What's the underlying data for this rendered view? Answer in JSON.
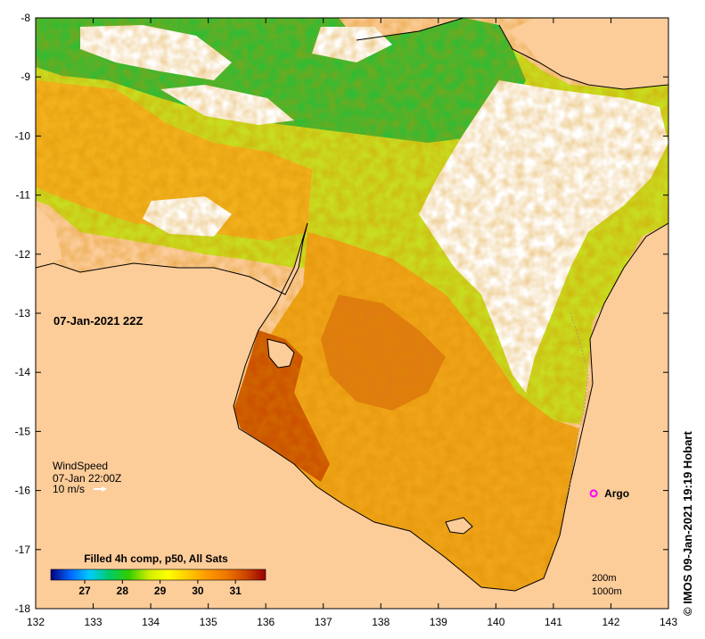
{
  "map": {
    "timestamp": "07-Jan-2021 22Z",
    "credit": "©  IMOS 09-Jan-2021 19:19 Hobart",
    "lon_ticks": [
      "132",
      "133",
      "134",
      "135",
      "136",
      "137",
      "138",
      "139",
      "140",
      "141",
      "142",
      "143"
    ],
    "lat_ticks": [
      "-8",
      "-9",
      "-10",
      "-11",
      "-12",
      "-13",
      "-14",
      "-15",
      "-16",
      "-17",
      "-18"
    ],
    "lon_range": [
      132,
      143
    ],
    "lat_range": [
      -18,
      -8
    ],
    "colors": {
      "land": "#fccc99",
      "cloud": "#ffffff",
      "coast": "#000000"
    }
  },
  "wind": {
    "title": "WindSpeed",
    "time": "07-Jan 22:00Z",
    "scale": "10 m/s"
  },
  "legend": {
    "title": "Filled 4h comp, p50, All Sats",
    "ticks": [
      "27",
      "28",
      "29",
      "30",
      "31"
    ],
    "range": [
      26.1,
      31.8
    ],
    "colors": [
      "#00007f",
      "#0066ff",
      "#00ccff",
      "#00cc66",
      "#33cc00",
      "#ccee00",
      "#ffff00",
      "#ffcc00",
      "#ff9900",
      "#ee7700",
      "#cc4400",
      "#990000"
    ]
  },
  "argo": {
    "label": "Argo",
    "lon": 141.7,
    "lat": -16.05,
    "color": "#ff00ff"
  },
  "depth_contours": {
    "shallow": "200m",
    "deep": "1000m"
  }
}
